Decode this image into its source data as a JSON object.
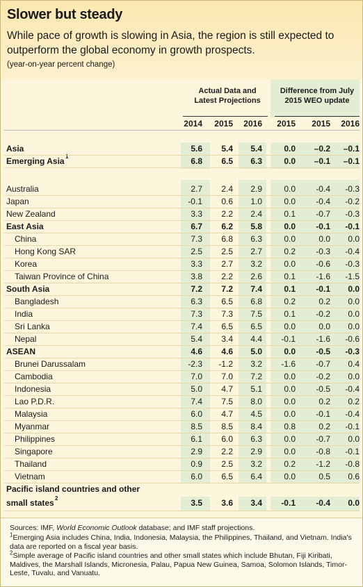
{
  "title": "Slower but steady",
  "subtitle": "While pace of growth is slowing in Asia, the region is still expected to outperform the global economy in growth prospects.",
  "units": "(year-on-year percent change)",
  "group_actual": "Actual Data and Latest Projections",
  "group_diff": "Difference from July 2015 WEO update",
  "years_actual": [
    "2014",
    "2015",
    "2016"
  ],
  "years_diff": [
    "2015",
    "2015",
    "2016"
  ],
  "colors": {
    "band": "#e3edd3",
    "header_bg": "#fbe8b0",
    "body_bg": "#fdf6dc"
  },
  "rows": [
    {
      "name": "Asia",
      "bold": true,
      "sub": false,
      "values": [
        "5.6",
        "5.4",
        "5.4",
        "0.0",
        "–0.2",
        "–0.1"
      ]
    },
    {
      "name": "Emerging Asia",
      "footnote": "1",
      "bold": true,
      "sub": false,
      "values": [
        "6.8",
        "6.5",
        "6.3",
        "0.0",
        "–0.1",
        "–0.1"
      ]
    },
    {
      "name": "Australia",
      "bold": false,
      "sub": false,
      "values": [
        "2.7",
        "2.4",
        "2.9",
        "0.0",
        "-0.4",
        "-0.3"
      ]
    },
    {
      "name": "Japan",
      "bold": false,
      "sub": false,
      "values": [
        "-0.1",
        "0.6",
        "1.0",
        "0.0",
        "-0.4",
        "-0.2"
      ]
    },
    {
      "name": "New Zealand",
      "bold": false,
      "sub": false,
      "values": [
        "3.3",
        "2.2",
        "2.4",
        "0.1",
        "-0.7",
        "-0.3"
      ]
    },
    {
      "name": "East Asia",
      "bold": true,
      "sub": false,
      "values": [
        "6.7",
        "6.2",
        "5.8",
        "0.0",
        "-0.1",
        "-0.1"
      ]
    },
    {
      "name": "China",
      "bold": false,
      "sub": true,
      "values": [
        "7.3",
        "6.8",
        "6.3",
        "0.0",
        "0.0",
        "0.0"
      ]
    },
    {
      "name": "Hong Kong SAR",
      "bold": false,
      "sub": true,
      "values": [
        "2.5",
        "2.5",
        "2.7",
        "0.2",
        "-0.3",
        "-0.4"
      ]
    },
    {
      "name": "Korea",
      "bold": false,
      "sub": true,
      "values": [
        "3.3",
        "2.7",
        "3.2",
        "0.0",
        "-0.6",
        "-0.3"
      ]
    },
    {
      "name": "Taiwan Province of China",
      "bold": false,
      "sub": true,
      "values": [
        "3.8",
        "2.2",
        "2.6",
        "0.1",
        "-1.6",
        "-1.5"
      ]
    },
    {
      "name": "South Asia",
      "bold": true,
      "sub": false,
      "values": [
        "7.2",
        "7.2",
        "7.4",
        "0.1",
        "-0.1",
        "0.0"
      ]
    },
    {
      "name": "Bangladesh",
      "bold": false,
      "sub": true,
      "values": [
        "6.3",
        "6.5",
        "6.8",
        "0.2",
        "0.2",
        "0.0"
      ]
    },
    {
      "name": "India",
      "bold": false,
      "sub": true,
      "values": [
        "7.3",
        "7.3",
        "7.5",
        "0.1",
        "-0.2",
        "0.0"
      ]
    },
    {
      "name": "Sri Lanka",
      "bold": false,
      "sub": true,
      "values": [
        "7.4",
        "6.5",
        "6.5",
        "0.0",
        "0.0",
        "0.0"
      ]
    },
    {
      "name": "Nepal",
      "bold": false,
      "sub": true,
      "values": [
        "5.4",
        "3.4",
        "4.4",
        "-0.1",
        "-1.6",
        "-0.6"
      ]
    },
    {
      "name": "ASEAN",
      "bold": true,
      "sub": false,
      "values": [
        "4.6",
        "4.6",
        "5.0",
        "0.0",
        "-0.5",
        "-0.3"
      ]
    },
    {
      "name": "Brunei Darussalam",
      "bold": false,
      "sub": true,
      "values": [
        "-2.3",
        "-1.2",
        "3.2",
        "-1.6",
        "-0.7",
        "0.4"
      ]
    },
    {
      "name": "Cambodia",
      "bold": false,
      "sub": true,
      "values": [
        "7.0",
        "7.0",
        "7.2",
        "0.0",
        "-0.2",
        "0.0"
      ]
    },
    {
      "name": "Indonesia",
      "bold": false,
      "sub": true,
      "values": [
        "5.0",
        "4.7",
        "5.1",
        "0.0",
        "-0.5",
        "-0.4"
      ]
    },
    {
      "name": "Lao P.D.R.",
      "bold": false,
      "sub": true,
      "values": [
        "7.4",
        "7.5",
        "8.0",
        "0.0",
        "0.2",
        "0.2"
      ]
    },
    {
      "name": "Malaysia",
      "bold": false,
      "sub": true,
      "values": [
        "6.0",
        "4.7",
        "4.5",
        "0.0",
        "-0.1",
        "-0.4"
      ]
    },
    {
      "name": "Myanmar",
      "bold": false,
      "sub": true,
      "values": [
        "8.5",
        "8.5",
        "8.4",
        "0.8",
        "0.2",
        "-0.1"
      ]
    },
    {
      "name": "Philippines",
      "bold": false,
      "sub": true,
      "values": [
        "6.1",
        "6.0",
        "6.3",
        "0.0",
        "-0.7",
        "0.0"
      ]
    },
    {
      "name": "Singapore",
      "bold": false,
      "sub": true,
      "values": [
        "2.9",
        "2.2",
        "2.9",
        "0.0",
        "-0.8",
        "-0.1"
      ]
    },
    {
      "name": "Thailand",
      "bold": false,
      "sub": true,
      "values": [
        "0.9",
        "2.5",
        "3.2",
        "0.2",
        "-1.2",
        "-0.8"
      ]
    },
    {
      "name": "Vietnam",
      "bold": false,
      "sub": true,
      "values": [
        "6.0",
        "6.5",
        "6.4",
        "0.0",
        "0.5",
        "0.6"
      ]
    },
    {
      "name": "Pacific island countries and other",
      "bold": true,
      "sub": false,
      "values": [
        "",
        "",
        "",
        "",
        "",
        ""
      ]
    },
    {
      "name": "small states",
      "footnote": "2",
      "bold": true,
      "sub": false,
      "values": [
        "3.5",
        "3.6",
        "3.4",
        "-0.1",
        "-0.4",
        "0.0"
      ]
    }
  ],
  "footer": {
    "sources_prefix": "Sources: IMF, ",
    "sources_italic": "World Economic Outlook",
    "sources_suffix": " database; and IMF staff projections.",
    "note1_marker": "1",
    "note1": "Emerging Asia includes China, India, Indonesia, Malaysia, the Philippines, Thailand, and Vietnam. India's data are reported on a fiscal year basis.",
    "note2_marker": "2",
    "note2": "Simple average of Pacific island countries and other small states which include Bhutan, Fiji Kiribati, Maldives, the Marshall Islands, Micronesia, Palau, Papua New Guinea, Samoa, Solomon Islands, Timor-Leste, Tuvalu, and Vanuatu."
  }
}
